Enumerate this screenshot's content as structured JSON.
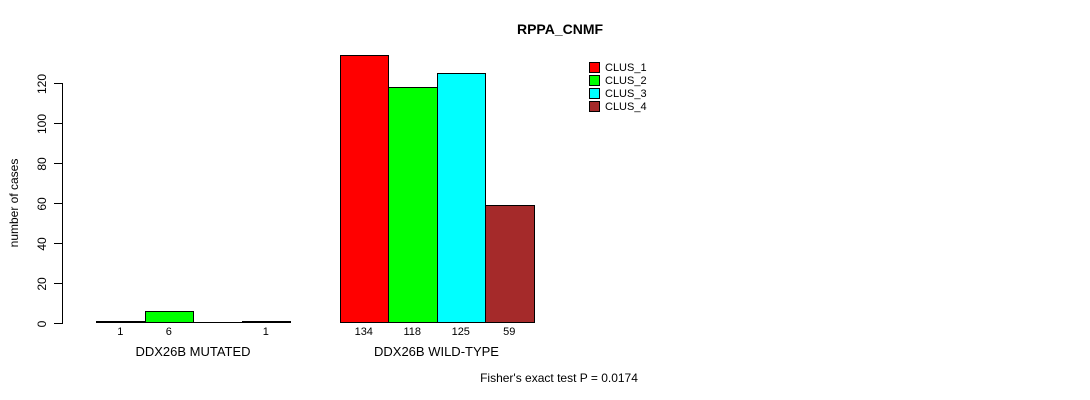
{
  "title": "RPPA_CNMF",
  "footnote": "Fisher's exact test P = 0.0174",
  "chart_data": {
    "type": "bar",
    "title": "RPPA_CNMF",
    "xlabel": "",
    "ylabel": "number of cases",
    "ylim": [
      0,
      134
    ],
    "yticks": [
      0,
      20,
      40,
      60,
      80,
      100,
      120
    ],
    "grid": false,
    "legend_position": "top-right",
    "categories": [
      "DDX26B MUTATED",
      "DDX26B WILD-TYPE"
    ],
    "series": [
      {
        "name": "CLUS_1",
        "color": "#ff0000",
        "values": [
          1,
          134
        ]
      },
      {
        "name": "CLUS_2",
        "color": "#00ff00",
        "values": [
          6,
          118
        ]
      },
      {
        "name": "CLUS_3",
        "color": "#00ffff",
        "values": [
          0,
          125
        ]
      },
      {
        "name": "CLUS_4",
        "color": "#a52a2a",
        "values": [
          1,
          59
        ]
      }
    ],
    "bar_value_labels": [
      [
        "1",
        "6",
        "",
        "1"
      ],
      [
        "134",
        "118",
        "125",
        "59"
      ]
    ],
    "annotation": "Fisher's exact test P = 0.0174"
  }
}
